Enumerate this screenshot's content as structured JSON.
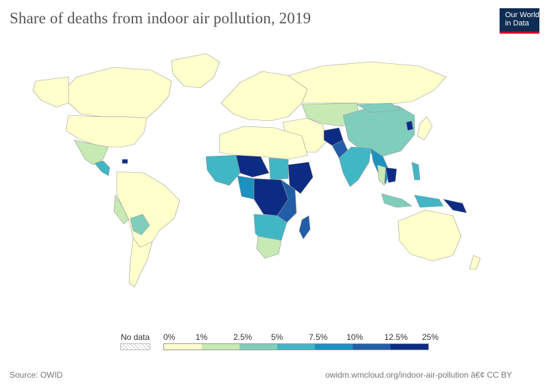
{
  "title": "Share of deaths from indoor air pollution, 2019",
  "logo": {
    "line1": "Our World",
    "line2": "in Data"
  },
  "legend": {
    "no_data": "No data",
    "ticks": [
      "0%",
      "1%",
      "2.5%",
      "5%",
      "7.5%",
      "10%",
      "12.5%",
      "25%"
    ],
    "colors": [
      "#ffffcc",
      "#c7e9b4",
      "#7fcdbb",
      "#41b6c4",
      "#1d91c0",
      "#225ea8",
      "#0c2c84"
    ]
  },
  "footer": {
    "source": "Source: OWID",
    "url": "owidm.wmcloud.org/indoor-air-pollution â€¢ CC BY"
  },
  "colors": {
    "land_low": "#ffffcc",
    "border": "#9a9a9a"
  }
}
